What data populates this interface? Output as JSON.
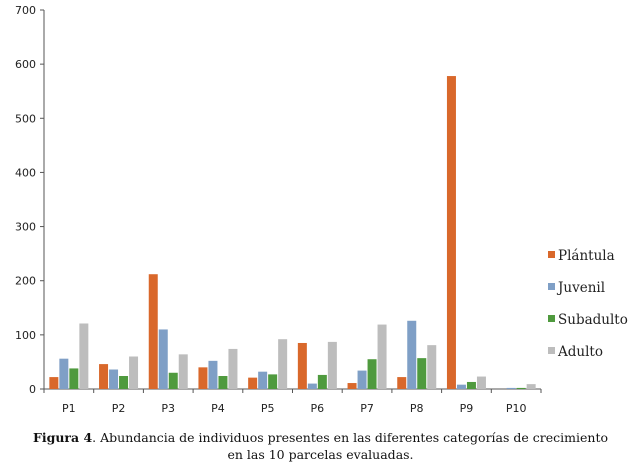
{
  "chart_data": {
    "type": "bar",
    "categories": [
      "P1",
      "P2",
      "P3",
      "P4",
      "P5",
      "P6",
      "P7",
      "P8",
      "P9",
      "P10"
    ],
    "series": [
      {
        "name": "Plántula",
        "color": "#d9682b",
        "values": [
          22,
          46,
          212,
          40,
          21,
          85,
          11,
          22,
          578,
          0
        ]
      },
      {
        "name": "Juvenil",
        "color": "#7f9fc6",
        "values": [
          56,
          36,
          110,
          52,
          32,
          10,
          34,
          126,
          8,
          2
        ]
      },
      {
        "name": "Subadulto",
        "color": "#4f9a3e",
        "values": [
          38,
          24,
          30,
          24,
          27,
          26,
          55,
          57,
          13,
          2
        ]
      },
      {
        "name": "Adulto",
        "color": "#bdbdbd",
        "values": [
          121,
          60,
          64,
          74,
          92,
          87,
          119,
          81,
          23,
          9
        ]
      }
    ],
    "ylim": [
      0,
      700
    ],
    "yticks": [
      0,
      100,
      200,
      300,
      400,
      500,
      600,
      700
    ],
    "legend_position": "right",
    "grid": false
  },
  "caption": {
    "label": "Figura 4",
    "text": ". Abundancia de individuos presentes en las diferentes categorías de crecimiento",
    "line2": "en las 10 parcelas evaluadas."
  }
}
